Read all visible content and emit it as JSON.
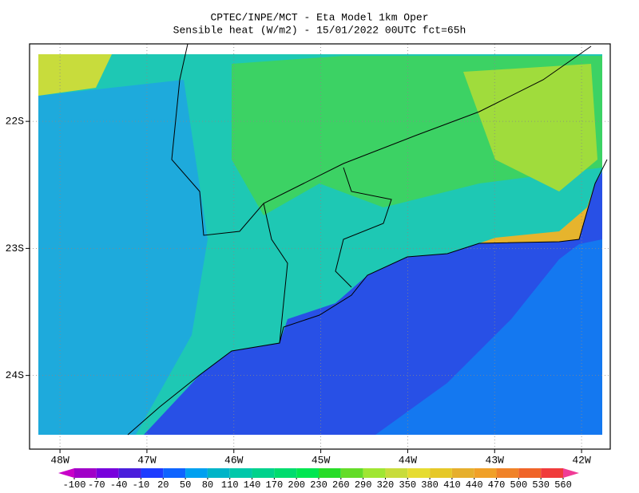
{
  "title": "CPTEC/INPE/MCT -  Eta Model 1km Oper",
  "subtitle": "Sensible heat (W/m2) - 15/01/2022 00UTC fct=65h",
  "xlim": [
    -48.35,
    -41.67
  ],
  "ylim": [
    -24.58,
    -21.39
  ],
  "xticks": [
    {
      "value": -48,
      "label": "48W"
    },
    {
      "value": -47,
      "label": "47W"
    },
    {
      "value": -46,
      "label": "46W"
    },
    {
      "value": -45,
      "label": "45W"
    },
    {
      "value": -44,
      "label": "44W"
    },
    {
      "value": -43,
      "label": "43W"
    },
    {
      "value": -42,
      "label": "42W"
    }
  ],
  "yticks": [
    {
      "value": -22,
      "label": "22S"
    },
    {
      "value": -23,
      "label": "23S"
    },
    {
      "value": -24,
      "label": "24S"
    }
  ],
  "grid": true,
  "colorbar": {
    "ticks": [
      -100,
      -70,
      -40,
      -10,
      20,
      50,
      80,
      110,
      140,
      170,
      200,
      230,
      260,
      290,
      320,
      350,
      380,
      410,
      440,
      470,
      500,
      530,
      560
    ],
    "colors": [
      "#c800c8",
      "#a000c8",
      "#7800dc",
      "#4b1edc",
      "#1e3cff",
      "#0f64ff",
      "#00a0f0",
      "#00b4c8",
      "#00c8aa",
      "#00d28c",
      "#00dc6e",
      "#00e650",
      "#28dc28",
      "#64dc28",
      "#a0e632",
      "#c8dc3c",
      "#e6dc32",
      "#e6c828",
      "#e6af2d",
      "#f0a028",
      "#f08228",
      "#f06428",
      "#f03c3c",
      "#f03c96"
    ]
  }
}
